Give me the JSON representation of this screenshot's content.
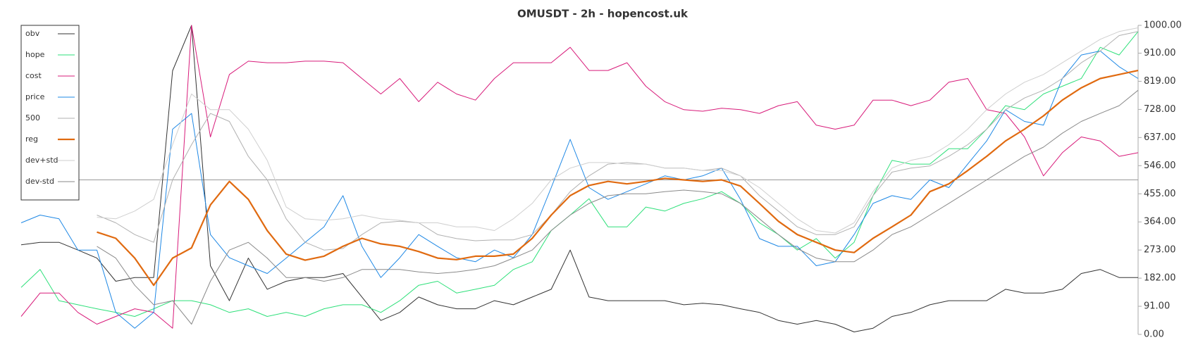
{
  "chart_data": {
    "type": "line",
    "title": "OMUSDT - 2h - hopencost.uk",
    "ylim": [
      0,
      1000
    ],
    "yticks": [
      {
        "value": 0,
        "label": "0.00"
      },
      {
        "value": 91,
        "label": "91.00"
      },
      {
        "value": 182,
        "label": "182.00"
      },
      {
        "value": 273,
        "label": "273.00"
      },
      {
        "value": 364,
        "label": "364.00"
      },
      {
        "value": 455,
        "label": "455.00"
      },
      {
        "value": 546,
        "label": "546.00"
      },
      {
        "value": 637,
        "label": "637.00"
      },
      {
        "value": 728,
        "label": "728.00"
      },
      {
        "value": 819,
        "label": "819.00"
      },
      {
        "value": 910,
        "label": "910.00"
      },
      {
        "value": 1000,
        "label": "1000.00"
      }
    ],
    "hline": 500,
    "legend": "upper left",
    "series": [
      {
        "name": "obv",
        "color": "#333333",
        "width": 1,
        "values": [
          290,
          298,
          298,
          273,
          247,
          172,
          184,
          184,
          853,
          1000,
          222,
          109,
          247,
          146,
          172,
          184,
          184,
          197,
          121,
          45,
          71,
          121,
          96,
          83,
          83,
          109,
          96,
          121,
          146,
          273,
          121,
          109,
          109,
          109,
          109,
          96,
          101,
          96,
          83,
          71,
          45,
          33,
          45,
          33,
          8,
          20,
          58,
          71,
          96,
          109,
          109,
          109,
          146,
          134,
          134,
          146,
          197,
          210,
          184,
          184
        ]
      },
      {
        "name": "hope",
        "color": "#2ee07a",
        "width": 1,
        "values": [
          152,
          210,
          109,
          96,
          83,
          71,
          58,
          83,
          109,
          109,
          96,
          71,
          83,
          58,
          71,
          58,
          83,
          96,
          96,
          71,
          109,
          159,
          172,
          134,
          146,
          159,
          210,
          235,
          336,
          386,
          439,
          348,
          348,
          412,
          399,
          424,
          439,
          462,
          424,
          361,
          323,
          273,
          310,
          247,
          298,
          449,
          563,
          551,
          551,
          601,
          601,
          664,
          740,
          727,
          778,
          803,
          828,
          929,
          904,
          980
        ]
      },
      {
        "name": "cost",
        "color": "#d81b7a",
        "width": 1,
        "values": [
          58,
          134,
          134,
          71,
          33,
          58,
          83,
          71,
          20,
          1000,
          639,
          841,
          884,
          879,
          879,
          884,
          884,
          879,
          828,
          778,
          828,
          753,
          816,
          778,
          758,
          828,
          879,
          879,
          879,
          929,
          854,
          854,
          879,
          803,
          753,
          727,
          722,
          732,
          727,
          715,
          740,
          753,
          677,
          664,
          677,
          758,
          758,
          740,
          758,
          816,
          828,
          727,
          715,
          639,
          513,
          588,
          639,
          626,
          576,
          588
        ]
      },
      {
        "name": "price",
        "color": "#1e88e5",
        "width": 1,
        "values": [
          361,
          386,
          374,
          273,
          273,
          71,
          20,
          71,
          664,
          715,
          323,
          248,
          222,
          197,
          247,
          298,
          348,
          449,
          285,
          184,
          248,
          323,
          285,
          248,
          235,
          273,
          248,
          323,
          475,
          631,
          475,
          437,
          462,
          487,
          513,
          500,
          513,
          538,
          437,
          310,
          285,
          285,
          222,
          235,
          323,
          424,
          449,
          437,
          500,
          475,
          551,
          626,
          727,
          689,
          677,
          828,
          904,
          917,
          866,
          828
        ]
      },
      {
        "name": "500",
        "color": "#b0b0b0",
        "width": 1,
        "values": [
          null,
          null,
          null,
          null,
          386,
          361,
          323,
          298,
          500,
          614,
          715,
          689,
          576,
          500,
          374,
          298,
          273,
          278,
          323,
          361,
          366,
          361,
          323,
          310,
          303,
          306,
          306,
          323,
          386,
          462,
          513,
          551,
          556,
          551,
          538,
          538,
          530,
          538,
          513,
          449,
          399,
          348,
          323,
          323,
          348,
          449,
          525,
          538,
          545,
          576,
          614,
          664,
          727,
          765,
          790,
          828,
          879,
          917,
          967,
          980
        ]
      },
      {
        "name": "reg",
        "color": "#e06a10",
        "width": 2.2,
        "values": [
          null,
          null,
          null,
          null,
          331,
          311,
          247,
          159,
          247,
          280,
          419,
          495,
          437,
          336,
          260,
          240,
          253,
          285,
          311,
          293,
          285,
          268,
          247,
          242,
          253,
          253,
          260,
          311,
          386,
          449,
          482,
          495,
          487,
          495,
          505,
          500,
          495,
          500,
          480,
          424,
          366,
          323,
          298,
          273,
          265,
          311,
          348,
          386,
          462,
          487,
          530,
          576,
          626,
          664,
          707,
          758,
          798,
          828,
          841,
          854
        ]
      },
      {
        "name": "dev+std",
        "color": "#cfcfcf",
        "width": 1,
        "values": [
          null,
          null,
          null,
          null,
          379,
          374,
          399,
          437,
          614,
          778,
          727,
          727,
          664,
          563,
          412,
          374,
          369,
          374,
          386,
          374,
          369,
          361,
          361,
          348,
          348,
          336,
          374,
          424,
          500,
          538,
          556,
          556,
          551,
          551,
          538,
          538,
          530,
          530,
          513,
          475,
          424,
          374,
          336,
          328,
          361,
          462,
          538,
          563,
          576,
          614,
          664,
          727,
          778,
          816,
          841,
          879,
          917,
          955,
          980,
          992
        ]
      },
      {
        "name": "dev-std",
        "color": "#8a8a8a",
        "width": 1,
        "values": [
          null,
          null,
          null,
          null,
          285,
          247,
          159,
          96,
          109,
          33,
          172,
          273,
          298,
          247,
          184,
          184,
          172,
          184,
          210,
          210,
          210,
          202,
          197,
          202,
          210,
          222,
          247,
          273,
          336,
          386,
          424,
          449,
          455,
          455,
          462,
          467,
          462,
          455,
          424,
          374,
          323,
          278,
          247,
          235,
          235,
          273,
          323,
          348,
          386,
          424,
          462,
          500,
          538,
          576,
          606,
          651,
          689,
          715,
          740,
          790
        ]
      }
    ]
  }
}
